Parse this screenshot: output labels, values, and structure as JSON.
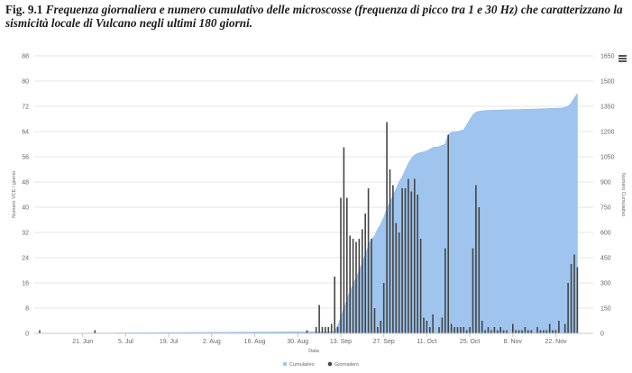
{
  "caption": {
    "lead": "Fig. 9.1",
    "text": "Frequenza giornaliera e numero cumulativo delle microscosse (frequenza di picco tra 1 e 30 Hz) che caratterizzano la sismicità locale di Vulcano negli ultimi 180 giorni."
  },
  "menu": {
    "icon": "hamburger-menu-icon"
  },
  "chart_data": {
    "type": "bar+area",
    "title": "",
    "xlabel": "Data",
    "ylabel_left": "Numero VCE / giorno",
    "ylabel_right": "Numero Cumulativo",
    "ylim_left": [
      0,
      88
    ],
    "ylim_right": [
      0,
      1650
    ],
    "yticks_left": [
      "0",
      "8",
      "16",
      "24",
      "32",
      "40",
      "48",
      "56",
      "64",
      "72",
      "80",
      "88"
    ],
    "yticks_right": [
      "0",
      "150",
      "300",
      "450",
      "600",
      "750",
      "900",
      "1050",
      "1200",
      "1350",
      "1500",
      "1650"
    ],
    "x_day_count": 180,
    "x_tick_labels": [
      "21. Jun",
      "5. Jul",
      "19. Jul",
      "2. Aug",
      "16. Aug",
      "30. Aug",
      "13. Sep",
      "27. Sep",
      "11. Oct",
      "25. Oct",
      "8. Nov",
      "22. Nov"
    ],
    "x_tick_days": [
      14,
      28,
      42,
      56,
      70,
      84,
      98,
      112,
      126,
      140,
      154,
      168
    ],
    "grid": true,
    "legend": {
      "position": "bottom-center",
      "items": [
        {
          "name": "Cumulativo",
          "color": "#9fc5ee"
        },
        {
          "name": "Giornaliero",
          "color": "#444444"
        }
      ]
    },
    "series": [
      {
        "name": "Giornaliero",
        "type": "bar",
        "color": "#444444",
        "points": [
          [
            0,
            1
          ],
          [
            18,
            1
          ],
          [
            87,
            1
          ],
          [
            90,
            2
          ],
          [
            91,
            9
          ],
          [
            92,
            2
          ],
          [
            93,
            2
          ],
          [
            94,
            2
          ],
          [
            95,
            3
          ],
          [
            96,
            18
          ],
          [
            97,
            2
          ],
          [
            98,
            43
          ],
          [
            99,
            59
          ],
          [
            100,
            43
          ],
          [
            101,
            31
          ],
          [
            102,
            30
          ],
          [
            103,
            29
          ],
          [
            104,
            30
          ],
          [
            105,
            33
          ],
          [
            106,
            38
          ],
          [
            107,
            46
          ],
          [
            108,
            30
          ],
          [
            109,
            8
          ],
          [
            110,
            2
          ],
          [
            111,
            4
          ],
          [
            112,
            16
          ],
          [
            113,
            67
          ],
          [
            114,
            52
          ],
          [
            115,
            47
          ],
          [
            116,
            35
          ],
          [
            117,
            32
          ],
          [
            118,
            46
          ],
          [
            119,
            46
          ],
          [
            120,
            49
          ],
          [
            121,
            45
          ],
          [
            122,
            49
          ],
          [
            123,
            44
          ],
          [
            124,
            30
          ],
          [
            125,
            5
          ],
          [
            126,
            4
          ],
          [
            127,
            2
          ],
          [
            128,
            6
          ],
          [
            130,
            2
          ],
          [
            131,
            5
          ],
          [
            132,
            27
          ],
          [
            133,
            63
          ],
          [
            134,
            3
          ],
          [
            135,
            2
          ],
          [
            136,
            2
          ],
          [
            137,
            2
          ],
          [
            138,
            2
          ],
          [
            139,
            1
          ],
          [
            140,
            2
          ],
          [
            141,
            27
          ],
          [
            142,
            47
          ],
          [
            143,
            40
          ],
          [
            144,
            4
          ],
          [
            145,
            1
          ],
          [
            146,
            2
          ],
          [
            147,
            1
          ],
          [
            148,
            2
          ],
          [
            149,
            1
          ],
          [
            150,
            2
          ],
          [
            151,
            1
          ],
          [
            152,
            1
          ],
          [
            154,
            3
          ],
          [
            155,
            1
          ],
          [
            156,
            1
          ],
          [
            157,
            1
          ],
          [
            158,
            2
          ],
          [
            159,
            1
          ],
          [
            160,
            1
          ],
          [
            162,
            2
          ],
          [
            163,
            1
          ],
          [
            164,
            1
          ],
          [
            165,
            1
          ],
          [
            166,
            3
          ],
          [
            167,
            1
          ],
          [
            168,
            1
          ],
          [
            169,
            4
          ],
          [
            171,
            3
          ],
          [
            172,
            16
          ],
          [
            173,
            22
          ],
          [
            174,
            25
          ],
          [
            175,
            21
          ]
        ]
      },
      {
        "name": "Cumulativo",
        "type": "area",
        "color": "#9fc5ee",
        "points": [
          [
            0,
            0
          ],
          [
            96,
            10
          ],
          [
            97,
            50
          ],
          [
            98,
            90
          ],
          [
            99,
            150
          ],
          [
            100,
            200
          ],
          [
            101,
            250
          ],
          [
            102,
            290
          ],
          [
            103,
            330
          ],
          [
            104,
            370
          ],
          [
            105,
            420
          ],
          [
            106,
            470
          ],
          [
            107,
            520
          ],
          [
            108,
            560
          ],
          [
            109,
            580
          ],
          [
            110,
            620
          ],
          [
            111,
            650
          ],
          [
            112,
            690
          ],
          [
            113,
            740
          ],
          [
            114,
            780
          ],
          [
            115,
            820
          ],
          [
            116,
            860
          ],
          [
            117,
            900
          ],
          [
            118,
            930
          ],
          [
            119,
            970
          ],
          [
            120,
            1010
          ],
          [
            121,
            1040
          ],
          [
            122,
            1060
          ],
          [
            123,
            1070
          ],
          [
            124,
            1075
          ],
          [
            125,
            1080
          ],
          [
            126,
            1085
          ],
          [
            127,
            1095
          ],
          [
            128,
            1105
          ],
          [
            129,
            1108
          ],
          [
            130,
            1110
          ],
          [
            131,
            1118
          ],
          [
            132,
            1125
          ],
          [
            133,
            1180
          ],
          [
            134,
            1195
          ],
          [
            135,
            1198
          ],
          [
            136,
            1200
          ],
          [
            137,
            1205
          ],
          [
            138,
            1210
          ],
          [
            139,
            1240
          ],
          [
            140,
            1270
          ],
          [
            141,
            1300
          ],
          [
            142,
            1315
          ],
          [
            143,
            1320
          ],
          [
            144,
            1323
          ],
          [
            145,
            1325
          ],
          [
            150,
            1328
          ],
          [
            155,
            1330
          ],
          [
            160,
            1333
          ],
          [
            165,
            1336
          ],
          [
            170,
            1340
          ],
          [
            172,
            1350
          ],
          [
            173,
            1370
          ],
          [
            174,
            1400
          ],
          [
            175,
            1425
          ]
        ]
      }
    ]
  }
}
